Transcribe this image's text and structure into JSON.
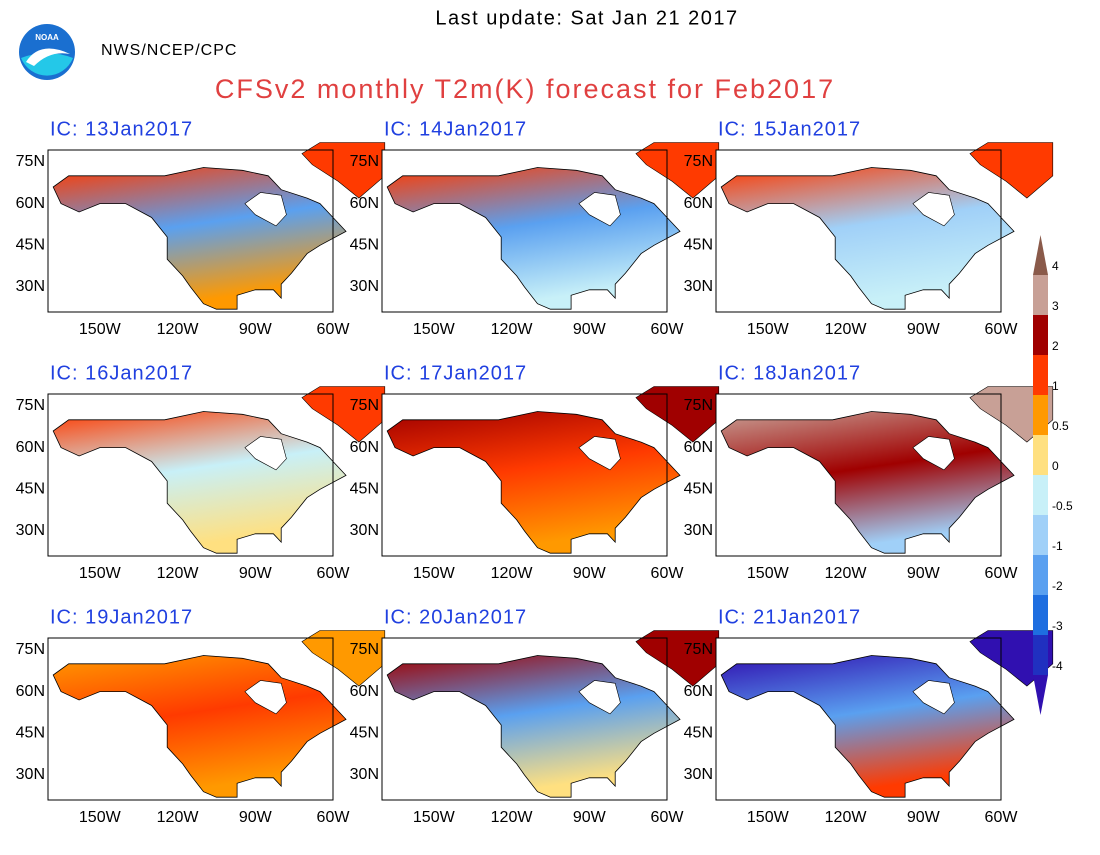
{
  "header": {
    "update": "Last update: Sat Jan 21 2017",
    "agency": "NWS/NCEP/CPC",
    "logo": "NOAA",
    "title": "CFSv2 monthly T2m(K) forecast for Feb2017"
  },
  "panels": [
    {
      "label": "IC: 13Jan2017"
    },
    {
      "label": "IC: 14Jan2017"
    },
    {
      "label": "IC: 15Jan2017"
    },
    {
      "label": "IC: 16Jan2017"
    },
    {
      "label": "IC: 17Jan2017"
    },
    {
      "label": "IC: 18Jan2017"
    },
    {
      "label": "IC: 19Jan2017"
    },
    {
      "label": "IC: 20Jan2017"
    },
    {
      "label": "IC: 21Jan2017"
    }
  ],
  "lat_ticks": [
    "75N",
    "60N",
    "45N",
    "30N"
  ],
  "lon_ticks": [
    "150W",
    "120W",
    "90W",
    "60W"
  ],
  "colorbar": {
    "labels": [
      "4",
      "3",
      "2",
      "1",
      "0.5",
      "0",
      "-0.5",
      "-1",
      "-2",
      "-3",
      "-4"
    ],
    "colors": [
      "#8a5a4a",
      "#c8a096",
      "#a00000",
      "#ff3a00",
      "#ff9900",
      "#ffe080",
      "#c8f0f8",
      "#a0d0f8",
      "#5aa0f0",
      "#1e6ee0",
      "#2030c0",
      "#3010b0"
    ]
  }
}
